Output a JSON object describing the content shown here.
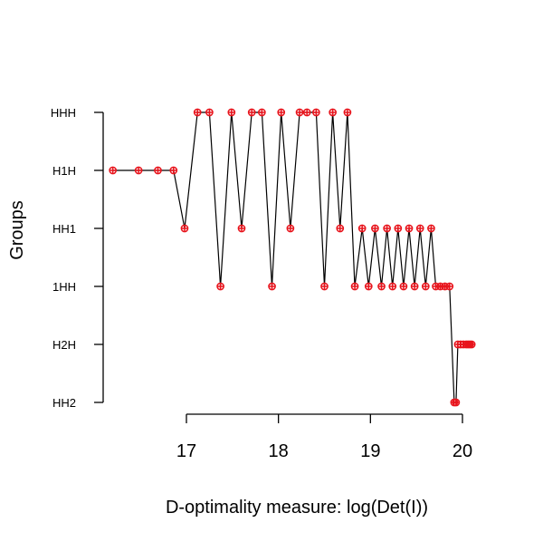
{
  "chart_data": {
    "type": "line",
    "title": "",
    "xlabel": "D-optimality measure: log(Det(I))",
    "ylabel": "Groups",
    "xlim": [
      16.2,
      20.15
    ],
    "x_ticks": [
      "17",
      "18",
      "19",
      "20"
    ],
    "y_categories": [
      "HH2",
      "H2H",
      "1HH",
      "HH1",
      "H1H",
      "HHH"
    ],
    "grid": false,
    "legend": "none",
    "colors": {
      "line": "#000000",
      "marker": "#e8141c"
    },
    "marker": "circle-plus",
    "series": [
      {
        "x": [
          16.2,
          16.48,
          16.69,
          16.86,
          16.98,
          17.12,
          17.25,
          17.37,
          17.49,
          17.6,
          17.71,
          17.82,
          17.93,
          18.03,
          18.13,
          18.23,
          18.31,
          18.41,
          18.5,
          18.59,
          18.67,
          18.75,
          18.83,
          18.91,
          18.98,
          19.05,
          19.12,
          19.18,
          19.24,
          19.3,
          19.36,
          19.42,
          19.48,
          19.54,
          19.6,
          19.66,
          19.71,
          19.76,
          19.81,
          19.86,
          19.91,
          19.93,
          19.95,
          19.98,
          20.01,
          20.04,
          20.06,
          20.08,
          20.1
        ],
        "y": [
          "H1H",
          "H1H",
          "H1H",
          "H1H",
          "HH1",
          "HHH",
          "HHH",
          "1HH",
          "HHH",
          "HH1",
          "HHH",
          "HHH",
          "1HH",
          "HHH",
          "HH1",
          "HHH",
          "HHH",
          "HHH",
          "1HH",
          "HHH",
          "HH1",
          "HHH",
          "1HH",
          "HH1",
          "1HH",
          "HH1",
          "1HH",
          "HH1",
          "1HH",
          "HH1",
          "1HH",
          "HH1",
          "1HH",
          "HH1",
          "1HH",
          "HH1",
          "1HH",
          "1HH",
          "1HH",
          "1HH",
          "HH2",
          "HH2",
          "H2H",
          "H2H",
          "H2H",
          "H2H",
          "H2H",
          "H2H",
          "H2H"
        ]
      }
    ]
  }
}
